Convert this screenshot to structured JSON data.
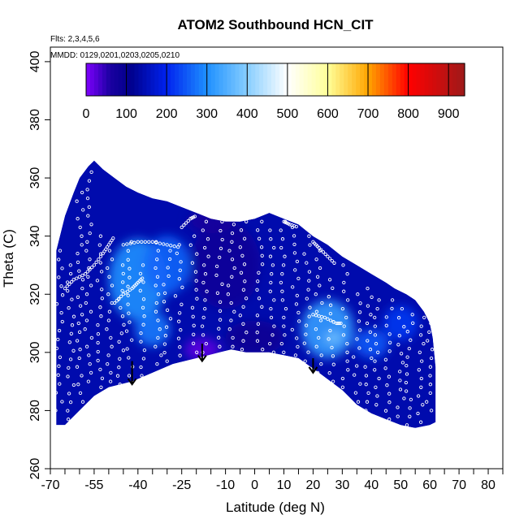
{
  "chart_data": {
    "type": "heatmap",
    "title": "ATOM2 Southbound HCN_CIT",
    "flights_note": "Flts: 2,3,4,5,6",
    "dates_note": "MMDD: 0129,0201,0203,0205,0210",
    "xlabel": "Latitude (deg N)",
    "ylabel": "Theta (C)",
    "xlim": [
      -70,
      85
    ],
    "ylim": [
      260,
      405
    ],
    "x_ticks": [
      -70,
      -55,
      -40,
      -25,
      -10,
      0,
      10,
      20,
      30,
      40,
      50,
      60,
      70,
      80
    ],
    "x_minor_ticks": [
      -65,
      -60,
      -50,
      -45,
      -35,
      -30,
      -20,
      -15,
      -5,
      5,
      15,
      25,
      35,
      45,
      55,
      65,
      75,
      85
    ],
    "y_ticks": [
      260,
      280,
      300,
      320,
      340,
      360,
      380,
      400
    ],
    "colorbar": {
      "min": 0,
      "max": 940,
      "ticks": [
        0,
        100,
        200,
        300,
        400,
        500,
        600,
        700,
        800,
        900
      ],
      "stops": [
        {
          "v": 0,
          "color": "#7f00ff"
        },
        {
          "v": 60,
          "color": "#1a00a0"
        },
        {
          "v": 110,
          "color": "#00008c"
        },
        {
          "v": 200,
          "color": "#0022ee"
        },
        {
          "v": 300,
          "color": "#1e90ff"
        },
        {
          "v": 400,
          "color": "#87ceff"
        },
        {
          "v": 500,
          "color": "#ffffff"
        },
        {
          "v": 600,
          "color": "#ffff99"
        },
        {
          "v": 700,
          "color": "#ffa500"
        },
        {
          "v": 800,
          "color": "#ff0000"
        },
        {
          "v": 940,
          "color": "#9e1a1a"
        }
      ]
    },
    "domain_top": [
      [
        -68,
        335
      ],
      [
        -65,
        347
      ],
      [
        -62,
        355
      ],
      [
        -60,
        360
      ],
      [
        -57,
        364
      ],
      [
        -55,
        366
      ],
      [
        -52,
        363
      ],
      [
        -48,
        360
      ],
      [
        -44,
        357
      ],
      [
        -40,
        355
      ],
      [
        -35,
        353
      ],
      [
        -30,
        352
      ],
      [
        -25,
        350
      ],
      [
        -20,
        348
      ],
      [
        -15,
        346
      ],
      [
        -10,
        345
      ],
      [
        -5,
        345
      ],
      [
        0,
        346
      ],
      [
        5,
        348
      ],
      [
        10,
        346
      ],
      [
        15,
        344
      ],
      [
        20,
        340
      ],
      [
        25,
        337
      ],
      [
        30,
        333
      ],
      [
        35,
        330
      ],
      [
        40,
        327
      ],
      [
        45,
        324
      ],
      [
        48,
        322
      ],
      [
        52,
        320
      ],
      [
        55,
        318
      ],
      [
        58,
        314
      ],
      [
        60,
        310
      ],
      [
        61,
        305
      ],
      [
        62,
        295
      ],
      [
        62,
        285
      ],
      [
        62,
        275
      ]
    ],
    "domain_bottom": [
      [
        -68,
        275
      ],
      [
        -65,
        275
      ],
      [
        -60,
        280
      ],
      [
        -55,
        285
      ],
      [
        -50,
        288
      ],
      [
        -42,
        290
      ],
      [
        -35,
        293
      ],
      [
        -28,
        296
      ],
      [
        -20,
        298
      ],
      [
        -12,
        300
      ],
      [
        -8,
        301
      ],
      [
        -3,
        300
      ],
      [
        5,
        300
      ],
      [
        15,
        298
      ],
      [
        22,
        293
      ],
      [
        30,
        287
      ],
      [
        35,
        282
      ],
      [
        40,
        279
      ],
      [
        45,
        277
      ],
      [
        50,
        275
      ],
      [
        55,
        274
      ],
      [
        60,
        275
      ],
      [
        62,
        276
      ]
    ],
    "enhanced_regions": [
      {
        "lat": -40,
        "theta": 325,
        "rx": 10,
        "ry": 14,
        "value": 300
      },
      {
        "lat": -30,
        "theta": 330,
        "rx": 8,
        "ry": 10,
        "value": 260
      },
      {
        "lat": -35,
        "theta": 308,
        "rx": 6,
        "ry": 6,
        "value": 280
      },
      {
        "lat": 25,
        "theta": 308,
        "rx": 9,
        "ry": 10,
        "value": 320
      },
      {
        "lat": 27,
        "theta": 305,
        "rx": 3,
        "ry": 2,
        "value": 380
      },
      {
        "lat": 40,
        "theta": 303,
        "rx": 6,
        "ry": 5,
        "value": 250
      },
      {
        "lat": 50,
        "theta": 310,
        "rx": 6,
        "ry": 6,
        "value": 220
      }
    ],
    "depleted_regions": [
      {
        "lat": -18,
        "theta": 301,
        "rx": 6,
        "ry": 4,
        "value": 20
      },
      {
        "lat": -10,
        "theta": 330,
        "rx": 12,
        "ry": 15,
        "value": 80
      },
      {
        "lat": 0,
        "theta": 305,
        "rx": 10,
        "ry": 6,
        "value": 90
      },
      {
        "lat": -15,
        "theta": 345,
        "rx": 8,
        "ry": 4,
        "value": 70
      }
    ],
    "background_value": 140,
    "arrows_lat": [
      -42,
      -18,
      20
    ],
    "arrows_theta": [
      [
        297,
        289
      ],
      [
        303,
        297
      ],
      [
        298,
        293
      ]
    ],
    "observation_tracks": [
      {
        "points": [
          [
            -65,
            322
          ],
          [
            -62,
            325
          ],
          [
            -58,
            327
          ],
          [
            -55,
            330
          ],
          [
            -52,
            334
          ],
          [
            -50,
            337
          ],
          [
            -48,
            340
          ]
        ]
      },
      {
        "points": [
          [
            -48,
            317
          ],
          [
            -45,
            320
          ],
          [
            -42,
            322
          ],
          [
            -40,
            324
          ],
          [
            -38,
            326
          ]
        ]
      },
      {
        "points": [
          [
            -45,
            337
          ],
          [
            -40,
            338
          ],
          [
            -35,
            338
          ],
          [
            -30,
            337
          ],
          [
            -25,
            336
          ]
        ]
      },
      {
        "points": [
          [
            -25,
            343
          ],
          [
            -22,
            346
          ],
          [
            -20,
            347
          ]
        ]
      },
      {
        "points": [
          [
            -15,
            351
          ],
          [
            -12,
            352
          ],
          [
            -8,
            352
          ]
        ]
      },
      {
        "points": [
          [
            0,
            349
          ],
          [
            2,
            350
          ],
          [
            5,
            348
          ]
        ]
      },
      {
        "points": [
          [
            10,
            345
          ],
          [
            12,
            344
          ],
          [
            15,
            343
          ]
        ]
      },
      {
        "points": [
          [
            20,
            338
          ],
          [
            22,
            336
          ],
          [
            25,
            333
          ],
          [
            28,
            330
          ]
        ]
      },
      {
        "points": [
          [
            20,
            313
          ],
          [
            24,
            312
          ],
          [
            28,
            310
          ],
          [
            30,
            310
          ]
        ]
      }
    ],
    "profiles": [
      {
        "lat": -67,
        "t0": 280,
        "t1": 335
      },
      {
        "lat": -63,
        "t0": 277,
        "t1": 330
      },
      {
        "lat": -60,
        "t0": 283,
        "t1": 355
      },
      {
        "lat": -57,
        "t0": 290,
        "t1": 362
      },
      {
        "lat": -53,
        "t0": 288,
        "t1": 340
      },
      {
        "lat": -50,
        "t0": 290,
        "t1": 335
      },
      {
        "lat": -46,
        "t0": 289,
        "t1": 330
      },
      {
        "lat": -43,
        "t0": 292,
        "t1": 338
      },
      {
        "lat": -38,
        "t0": 292,
        "t1": 330
      },
      {
        "lat": -33,
        "t0": 296,
        "t1": 338
      },
      {
        "lat": -30,
        "t0": 297,
        "t1": 335
      },
      {
        "lat": -26,
        "t0": 296,
        "t1": 337
      },
      {
        "lat": -21,
        "t0": 300,
        "t1": 340
      },
      {
        "lat": -17,
        "t0": 300,
        "t1": 345
      },
      {
        "lat": -12,
        "t0": 302,
        "t1": 348
      },
      {
        "lat": -8,
        "t0": 302,
        "t1": 347
      },
      {
        "lat": -4,
        "t0": 301,
        "t1": 345
      },
      {
        "lat": 2,
        "t0": 301,
        "t1": 345
      },
      {
        "lat": 6,
        "t0": 300,
        "t1": 342
      },
      {
        "lat": 10,
        "t0": 300,
        "t1": 345
      },
      {
        "lat": 14,
        "t0": 299,
        "t1": 343
      },
      {
        "lat": 18,
        "t0": 297,
        "t1": 340
      },
      {
        "lat": 22,
        "t0": 293,
        "t1": 335
      },
      {
        "lat": 26,
        "t0": 290,
        "t1": 325
      },
      {
        "lat": 31,
        "t0": 288,
        "t1": 330
      },
      {
        "lat": 35,
        "t0": 283,
        "t1": 320
      },
      {
        "lat": 39,
        "t0": 280,
        "t1": 322
      },
      {
        "lat": 42,
        "t0": 282,
        "t1": 318
      },
      {
        "lat": 46,
        "t0": 277,
        "t1": 318
      },
      {
        "lat": 50,
        "t0": 278,
        "t1": 315
      },
      {
        "lat": 53,
        "t0": 275,
        "t1": 313
      },
      {
        "lat": 57,
        "t0": 276,
        "t1": 315
      },
      {
        "lat": 60,
        "t0": 280,
        "t1": 310
      }
    ]
  }
}
